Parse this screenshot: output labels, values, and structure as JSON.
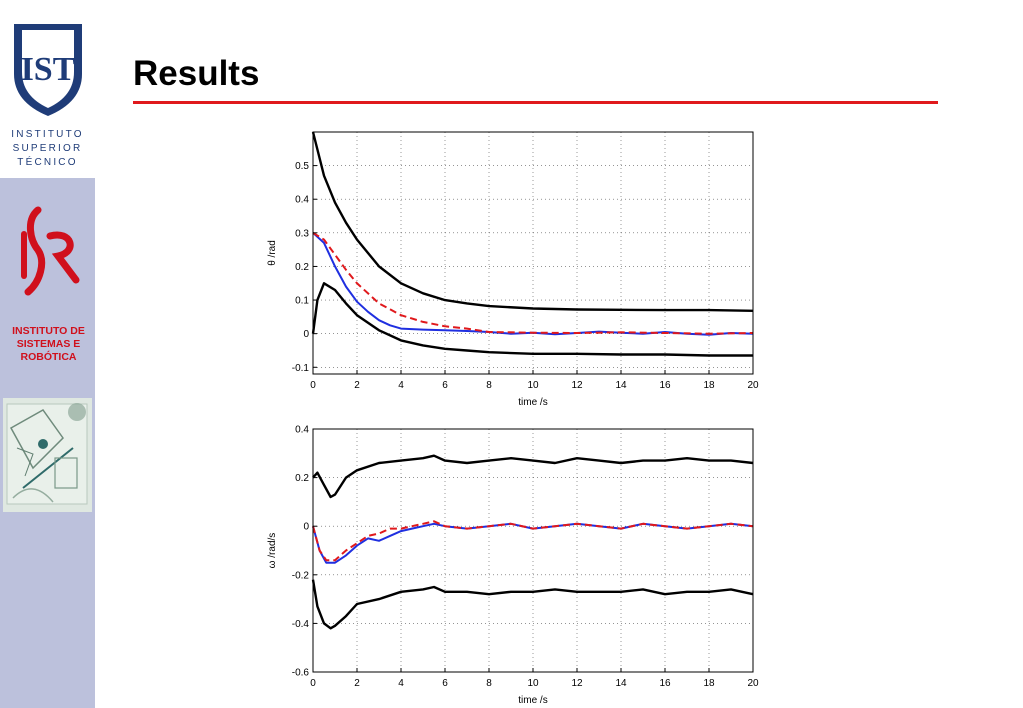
{
  "slide": {
    "title": "Results"
  },
  "sidebar": {
    "ist_logo": {
      "lines": [
        "INSTITUTO",
        "SUPERIOR",
        "TÉCNICO"
      ],
      "shield_text": "IST"
    },
    "isr_logo": {
      "name": "INSTITUTO DE\nSISTEMAS E\nROBÓTICA",
      "color": "#d0101c"
    }
  },
  "colors": {
    "accent_rule": "#e0191c",
    "sidebar_bg": "#bcc1dc",
    "ist_blue": "#1f3c78"
  },
  "chart_data": [
    {
      "type": "line",
      "xlabel": "time /s",
      "ylabel": "θ /rad",
      "xlim": [
        0,
        20
      ],
      "ylim": [
        -0.12,
        0.6
      ],
      "xticks": [
        0,
        2,
        4,
        6,
        8,
        10,
        12,
        14,
        16,
        18,
        20
      ],
      "yticks": [
        -0.1,
        0,
        0.1,
        0.2,
        0.3,
        0.4,
        0.5
      ],
      "grid": true,
      "series": [
        {
          "color": "#000000",
          "style": "solid",
          "x": [
            0,
            0.5,
            1,
            1.5,
            2,
            3,
            4,
            5,
            6,
            7,
            8,
            10,
            12,
            14,
            16,
            18,
            20
          ],
          "values": [
            0.6,
            0.47,
            0.39,
            0.33,
            0.28,
            0.2,
            0.15,
            0.12,
            0.1,
            0.09,
            0.082,
            0.075,
            0.072,
            0.071,
            0.07,
            0.07,
            0.068
          ]
        },
        {
          "color": "#000000",
          "style": "solid",
          "x": [
            0,
            0.2,
            0.5,
            1,
            1.5,
            2,
            3,
            4,
            5,
            6,
            7,
            8,
            10,
            12,
            14,
            16,
            18,
            20
          ],
          "values": [
            0.0,
            0.1,
            0.15,
            0.13,
            0.09,
            0.055,
            0.01,
            -0.02,
            -0.035,
            -0.045,
            -0.05,
            -0.055,
            -0.06,
            -0.06,
            -0.062,
            -0.062,
            -0.065,
            -0.065
          ]
        },
        {
          "color": "#1f2fe0",
          "style": "solid",
          "x": [
            0,
            0.5,
            1,
            1.5,
            2,
            2.5,
            3,
            3.5,
            4,
            5,
            6,
            7,
            8,
            9,
            10,
            11,
            12,
            13,
            14,
            15,
            16,
            17,
            18,
            19,
            20
          ],
          "values": [
            0.3,
            0.27,
            0.2,
            0.14,
            0.095,
            0.065,
            0.04,
            0.025,
            0.015,
            0.012,
            0.01,
            0.008,
            0.005,
            0.0,
            0.003,
            -0.002,
            0.002,
            0.006,
            0.003,
            0.0,
            0.005,
            0.0,
            -0.003,
            0.002,
            0.0
          ]
        },
        {
          "color": "#e0191c",
          "style": "dashed",
          "x": [
            0,
            0.5,
            1,
            1.5,
            2,
            3,
            4,
            5,
            6,
            7,
            8,
            10,
            12,
            14,
            16,
            18,
            20
          ],
          "values": [
            0.3,
            0.28,
            0.235,
            0.19,
            0.15,
            0.09,
            0.055,
            0.035,
            0.022,
            0.015,
            0.005,
            0.003,
            0.002,
            0.004,
            0.002,
            0.0,
            0.002
          ]
        }
      ]
    },
    {
      "type": "line",
      "xlabel": "time /s",
      "ylabel": "ω /rad/s",
      "xlim": [
        0,
        20
      ],
      "ylim": [
        -0.6,
        0.4
      ],
      "xticks": [
        0,
        2,
        4,
        6,
        8,
        10,
        12,
        14,
        16,
        18,
        20
      ],
      "yticks": [
        -0.6,
        -0.4,
        -0.2,
        0,
        0.2,
        0.4
      ],
      "grid": true,
      "series": [
        {
          "color": "#000000",
          "style": "solid",
          "x": [
            0,
            0.2,
            0.5,
            0.8,
            1,
            1.5,
            2,
            3,
            4,
            5,
            5.5,
            6,
            7,
            8,
            9,
            10,
            11,
            12,
            13,
            14,
            15,
            16,
            17,
            18,
            19,
            20
          ],
          "values": [
            0.2,
            0.22,
            0.17,
            0.12,
            0.13,
            0.2,
            0.23,
            0.26,
            0.27,
            0.28,
            0.29,
            0.27,
            0.26,
            0.27,
            0.28,
            0.27,
            0.26,
            0.28,
            0.27,
            0.26,
            0.27,
            0.27,
            0.28,
            0.27,
            0.27,
            0.26
          ]
        },
        {
          "color": "#000000",
          "style": "solid",
          "x": [
            0,
            0.2,
            0.5,
            0.8,
            1,
            1.5,
            2,
            3,
            4,
            5,
            5.5,
            6,
            7,
            8,
            9,
            10,
            11,
            12,
            13,
            14,
            15,
            16,
            17,
            18,
            19,
            20
          ],
          "values": [
            -0.22,
            -0.33,
            -0.4,
            -0.42,
            -0.41,
            -0.37,
            -0.32,
            -0.3,
            -0.27,
            -0.26,
            -0.25,
            -0.27,
            -0.27,
            -0.28,
            -0.27,
            -0.27,
            -0.26,
            -0.27,
            -0.27,
            -0.27,
            -0.26,
            -0.28,
            -0.27,
            -0.27,
            -0.26,
            -0.28
          ]
        },
        {
          "color": "#1f2fe0",
          "style": "solid",
          "x": [
            0,
            0.3,
            0.6,
            1,
            1.5,
            2,
            2.5,
            3,
            3.5,
            4,
            4.5,
            5,
            5.5,
            6,
            7,
            8,
            9,
            10,
            11,
            12,
            13,
            14,
            15,
            16,
            17,
            18,
            19,
            20
          ],
          "values": [
            0.0,
            -0.1,
            -0.15,
            -0.15,
            -0.12,
            -0.08,
            -0.05,
            -0.06,
            -0.04,
            -0.02,
            -0.01,
            0.0,
            0.01,
            0.0,
            -0.01,
            0.0,
            0.01,
            -0.01,
            0.0,
            0.01,
            0.0,
            -0.01,
            0.01,
            0.0,
            -0.01,
            0.0,
            0.01,
            0.0
          ]
        },
        {
          "color": "#e0191c",
          "style": "dashed",
          "x": [
            0,
            0.3,
            0.6,
            1,
            1.5,
            2,
            2.5,
            3,
            3.5,
            4,
            4.5,
            5,
            5.5,
            6,
            7,
            8,
            9,
            10,
            11,
            12,
            13,
            14,
            15,
            16,
            17,
            18,
            19,
            20
          ],
          "values": [
            0.0,
            -0.1,
            -0.14,
            -0.14,
            -0.1,
            -0.07,
            -0.04,
            -0.03,
            -0.01,
            -0.01,
            0.0,
            0.01,
            0.02,
            0.0,
            -0.01,
            0.0,
            0.01,
            -0.01,
            0.0,
            0.01,
            0.0,
            -0.01,
            0.01,
            0.0,
            -0.01,
            0.0,
            0.01,
            0.0
          ]
        }
      ]
    }
  ]
}
